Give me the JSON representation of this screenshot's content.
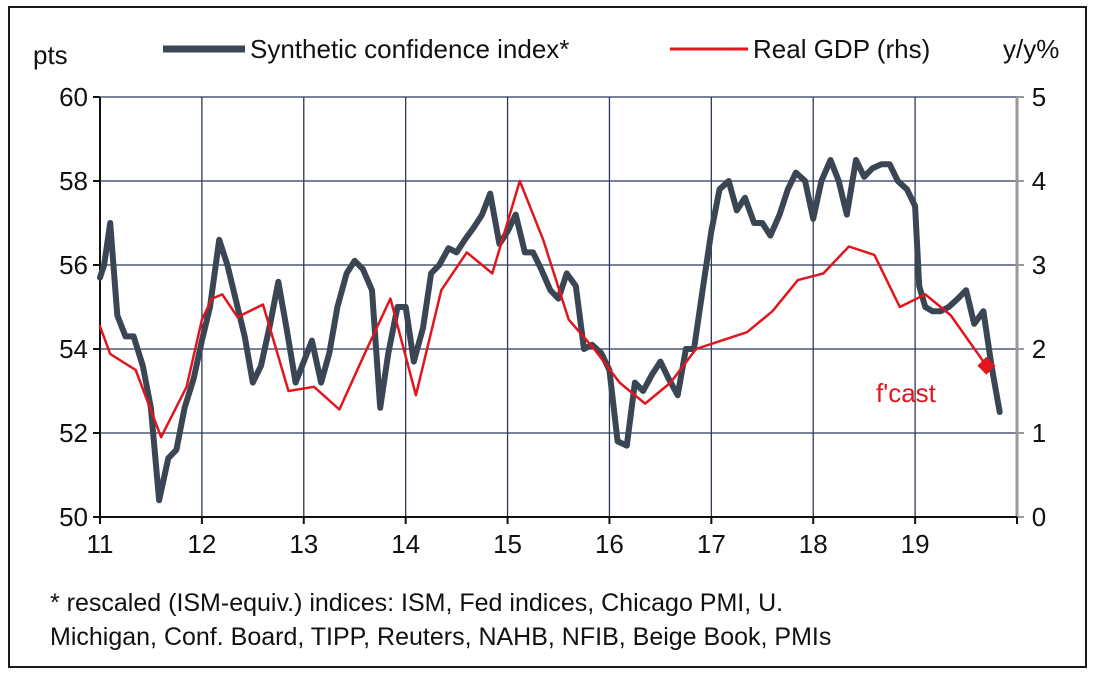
{
  "chart_data": {
    "type": "line",
    "ylabel_left": "pts",
    "ylabel_right": "y/y%",
    "ylim_left": [
      50,
      60
    ],
    "ylim_right": [
      0,
      5
    ],
    "yticks_left": [
      "50",
      "52",
      "54",
      "56",
      "58",
      "60"
    ],
    "yticks_right": [
      "0",
      "1",
      "2",
      "3",
      "4",
      "5"
    ],
    "xlim": [
      2011,
      2020
    ],
    "xticks": [
      "11",
      "12",
      "13",
      "14",
      "15",
      "16",
      "17",
      "18",
      "19"
    ],
    "grid": true,
    "legend_position": "top",
    "annotation": "f'cast",
    "series": [
      {
        "name": "Synthetic confidence index*",
        "axis": "left",
        "color": "#3b4654",
        "points": [
          [
            2011.0,
            55.7
          ],
          [
            2011.04,
            56.0
          ],
          [
            2011.1,
            57.0
          ],
          [
            2011.17,
            54.8
          ],
          [
            2011.25,
            54.3
          ],
          [
            2011.33,
            54.3
          ],
          [
            2011.42,
            53.6
          ],
          [
            2011.5,
            52.6
          ],
          [
            2011.58,
            50.4
          ],
          [
            2011.67,
            51.4
          ],
          [
            2011.75,
            51.6
          ],
          [
            2011.83,
            52.6
          ],
          [
            2011.92,
            53.3
          ],
          [
            2012.0,
            54.2
          ],
          [
            2012.08,
            55.0
          ],
          [
            2012.17,
            56.6
          ],
          [
            2012.25,
            56.0
          ],
          [
            2012.33,
            55.2
          ],
          [
            2012.42,
            54.3
          ],
          [
            2012.5,
            53.2
          ],
          [
            2012.58,
            53.6
          ],
          [
            2012.67,
            54.6
          ],
          [
            2012.75,
            55.6
          ],
          [
            2012.83,
            54.5
          ],
          [
            2012.92,
            53.2
          ],
          [
            2013.0,
            53.7
          ],
          [
            2013.08,
            54.2
          ],
          [
            2013.17,
            53.2
          ],
          [
            2013.25,
            53.9
          ],
          [
            2013.33,
            55.0
          ],
          [
            2013.42,
            55.8
          ],
          [
            2013.5,
            56.1
          ],
          [
            2013.58,
            55.9
          ],
          [
            2013.67,
            55.4
          ],
          [
            2013.75,
            52.6
          ],
          [
            2013.83,
            53.9
          ],
          [
            2013.92,
            55.0
          ],
          [
            2014.0,
            55.0
          ],
          [
            2014.08,
            53.7
          ],
          [
            2014.17,
            54.5
          ],
          [
            2014.25,
            55.8
          ],
          [
            2014.33,
            56.0
          ],
          [
            2014.42,
            56.4
          ],
          [
            2014.5,
            56.3
          ],
          [
            2014.58,
            56.6
          ],
          [
            2014.67,
            56.9
          ],
          [
            2014.75,
            57.2
          ],
          [
            2014.83,
            57.7
          ],
          [
            2014.92,
            56.5
          ],
          [
            2015.0,
            56.8
          ],
          [
            2015.08,
            57.2
          ],
          [
            2015.17,
            56.3
          ],
          [
            2015.25,
            56.3
          ],
          [
            2015.33,
            55.9
          ],
          [
            2015.42,
            55.4
          ],
          [
            2015.5,
            55.2
          ],
          [
            2015.58,
            55.8
          ],
          [
            2015.67,
            55.5
          ],
          [
            2015.75,
            54.0
          ],
          [
            2015.83,
            54.1
          ],
          [
            2015.92,
            53.9
          ],
          [
            2016.0,
            53.5
          ],
          [
            2016.08,
            51.8
          ],
          [
            2016.17,
            51.7
          ],
          [
            2016.25,
            53.2
          ],
          [
            2016.33,
            53.0
          ],
          [
            2016.42,
            53.4
          ],
          [
            2016.5,
            53.7
          ],
          [
            2016.58,
            53.3
          ],
          [
            2016.67,
            52.9
          ],
          [
            2016.75,
            54.0
          ],
          [
            2016.83,
            54.0
          ],
          [
            2016.92,
            55.5
          ],
          [
            2017.0,
            56.8
          ],
          [
            2017.08,
            57.8
          ],
          [
            2017.17,
            58.0
          ],
          [
            2017.25,
            57.3
          ],
          [
            2017.33,
            57.6
          ],
          [
            2017.42,
            57.0
          ],
          [
            2017.5,
            57.0
          ],
          [
            2017.58,
            56.7
          ],
          [
            2017.67,
            57.2
          ],
          [
            2017.75,
            57.8
          ],
          [
            2017.83,
            58.2
          ],
          [
            2017.92,
            58.0
          ],
          [
            2018.0,
            57.1
          ],
          [
            2018.08,
            58.0
          ],
          [
            2018.17,
            58.5
          ],
          [
            2018.25,
            58.0
          ],
          [
            2018.33,
            57.2
          ],
          [
            2018.42,
            58.5
          ],
          [
            2018.5,
            58.1
          ],
          [
            2018.58,
            58.3
          ],
          [
            2018.67,
            58.4
          ],
          [
            2018.75,
            58.4
          ],
          [
            2018.83,
            58.0
          ],
          [
            2018.92,
            57.8
          ],
          [
            2019.0,
            57.4
          ],
          [
            2019.04,
            55.5
          ],
          [
            2019.1,
            55.0
          ],
          [
            2019.17,
            54.9
          ],
          [
            2019.25,
            54.9
          ],
          [
            2019.33,
            55.0
          ],
          [
            2019.42,
            55.2
          ],
          [
            2019.5,
            55.4
          ],
          [
            2019.58,
            54.6
          ],
          [
            2019.67,
            54.9
          ],
          [
            2019.75,
            53.6
          ],
          [
            2019.83,
            52.5
          ]
        ]
      },
      {
        "name": "Real GDP (rhs)",
        "axis": "right",
        "color": "#e0161e",
        "points": [
          [
            2011.0,
            2.27
          ],
          [
            2011.1,
            1.94
          ],
          [
            2011.35,
            1.75
          ],
          [
            2011.6,
            0.95
          ],
          [
            2011.85,
            1.55
          ],
          [
            2012.0,
            2.35
          ],
          [
            2012.1,
            2.6
          ],
          [
            2012.2,
            2.65
          ],
          [
            2012.35,
            2.38
          ],
          [
            2012.6,
            2.53
          ],
          [
            2012.85,
            1.5
          ],
          [
            2013.1,
            1.55
          ],
          [
            2013.35,
            1.28
          ],
          [
            2013.6,
            1.95
          ],
          [
            2013.85,
            2.6
          ],
          [
            2014.1,
            1.45
          ],
          [
            2014.35,
            2.7
          ],
          [
            2014.6,
            3.15
          ],
          [
            2014.85,
            2.9
          ],
          [
            2015.12,
            4.0
          ],
          [
            2015.35,
            3.3
          ],
          [
            2015.6,
            2.35
          ],
          [
            2015.85,
            2.0
          ],
          [
            2016.1,
            1.6
          ],
          [
            2016.35,
            1.35
          ],
          [
            2016.6,
            1.6
          ],
          [
            2016.85,
            2.0
          ],
          [
            2017.1,
            2.1
          ],
          [
            2017.35,
            2.2
          ],
          [
            2017.6,
            2.45
          ],
          [
            2017.85,
            2.82
          ],
          [
            2018.1,
            2.9
          ],
          [
            2018.35,
            3.22
          ],
          [
            2018.6,
            3.12
          ],
          [
            2018.85,
            2.5
          ],
          [
            2019.1,
            2.65
          ],
          [
            2019.35,
            2.4
          ],
          [
            2019.7,
            1.8
          ]
        ]
      }
    ],
    "forecast_point": {
      "series": "Real GDP (rhs)",
      "x": 2019.7,
      "y": 1.8,
      "color": "#e0161e"
    }
  },
  "footnote": {
    "line1": "* rescaled (ISM-equiv.) indices: ISM, Fed indices, Chicago PMI, U.",
    "line2": "Michigan, Conf. Board, TIPP, Reuters, NAHB, NFIB, Beige Book, PMIs"
  }
}
